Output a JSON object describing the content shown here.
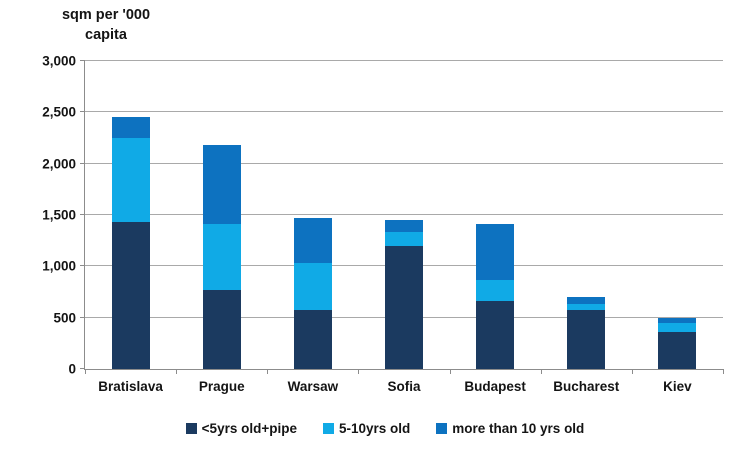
{
  "title": {
    "line1": "sqm per '000",
    "line2": "capita"
  },
  "chart_data": {
    "type": "bar",
    "stacked": true,
    "title": "sqm per '000 capita",
    "ylabel": "sqm per '000 capita",
    "xlabel": "",
    "categories": [
      "Bratislava",
      "Prague",
      "Warsaw",
      "Sofia",
      "Budapest",
      "Bucharest",
      "Kiev"
    ],
    "series": [
      {
        "name": "<5yrs old+pipe",
        "color": "#1b3a60",
        "values": [
          1430,
          770,
          570,
          1200,
          660,
          570,
          360
        ]
      },
      {
        "name": "5-10yrs old",
        "color": "#10aae6",
        "values": [
          820,
          640,
          460,
          130,
          210,
          60,
          90
        ]
      },
      {
        "name": "more than 10 yrs old",
        "color": "#0d72c0",
        "values": [
          200,
          770,
          440,
          120,
          540,
          70,
          50
        ]
      }
    ],
    "ylim": [
      0,
      3000
    ],
    "y_ticks": [
      0,
      500,
      1000,
      1500,
      2000,
      2500,
      3000
    ],
    "y_tick_labels": [
      "0",
      "500",
      "1,000",
      "1,500",
      "2,000",
      "2,500",
      "3,000"
    ],
    "grid": true,
    "legend_position": "bottom"
  },
  "colors": {
    "axis": "#8c8c8c",
    "grid": "#a9a9a9",
    "text": "#141414",
    "background": "#ffffff"
  }
}
